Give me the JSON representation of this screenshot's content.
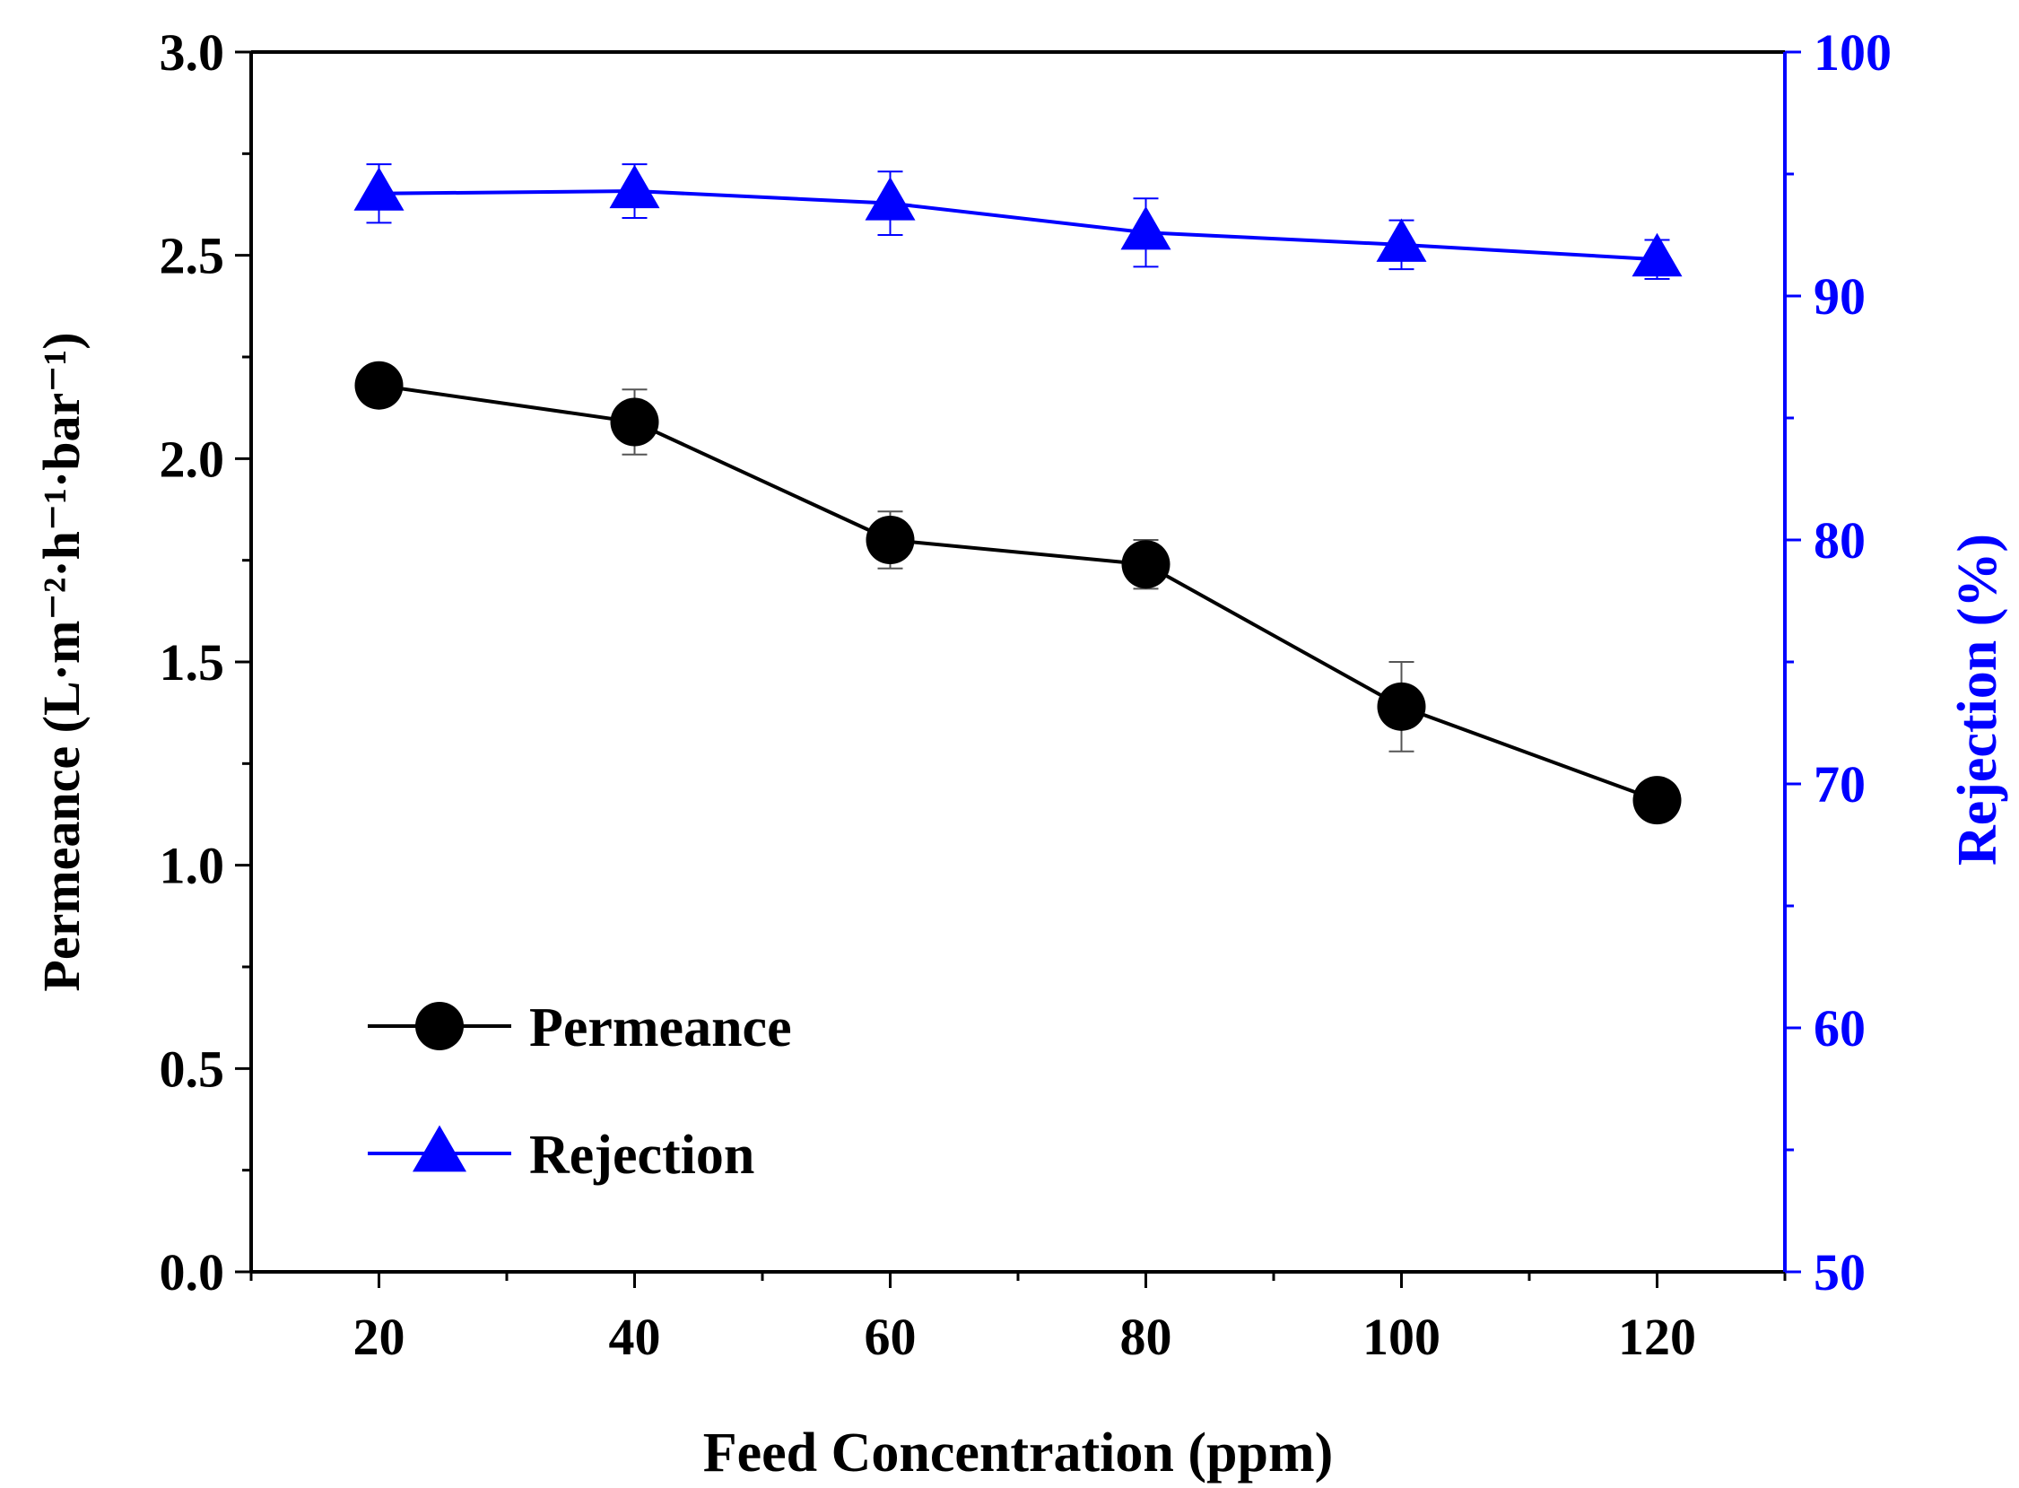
{
  "chart_data": {
    "type": "line",
    "xlabel": "Feed Concentration (ppm)",
    "ylabel_left": "Permeance (L·m⁻²·h⁻¹·bar⁻¹)",
    "ylabel_right": "Rejection (%)",
    "x": [
      20,
      40,
      60,
      80,
      100,
      120
    ],
    "x_ticks": [
      "20",
      "40",
      "60",
      "80",
      "100",
      "120"
    ],
    "xlim": [
      10,
      130
    ],
    "ylim_left": [
      0,
      3.0
    ],
    "ylim_right": [
      50,
      100
    ],
    "y_ticks_left": [
      "0.0",
      "0.5",
      "1.0",
      "1.5",
      "2.0",
      "2.5",
      "3.0"
    ],
    "y_ticks_right": [
      "50",
      "60",
      "70",
      "80",
      "90",
      "100"
    ],
    "grid": false,
    "legend_position": "bottom-left",
    "series": [
      {
        "name": "Permeance",
        "axis": "left",
        "marker": "circle",
        "color": "#000000",
        "values": [
          2.18,
          2.09,
          1.8,
          1.74,
          1.39,
          1.16
        ],
        "errors": [
          0.0,
          0.08,
          0.07,
          0.06,
          0.11,
          0.0
        ]
      },
      {
        "name": "Rejection",
        "axis": "right",
        "marker": "triangle",
        "color": "#0000ff",
        "values": [
          94.2,
          94.3,
          93.8,
          92.6,
          92.1,
          91.5
        ],
        "errors": [
          1.2,
          1.1,
          1.3,
          1.4,
          1.0,
          0.8
        ]
      }
    ]
  }
}
